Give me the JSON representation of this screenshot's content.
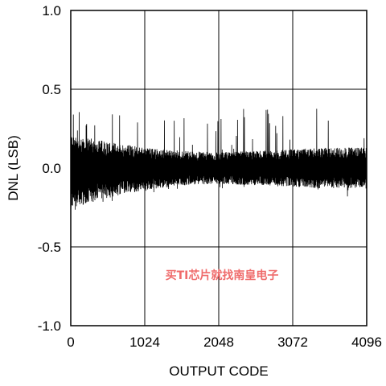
{
  "chart_data": {
    "type": "line",
    "title": "",
    "xlabel": "OUTPUT CODE",
    "ylabel": "DNL (LSB)",
    "xlim": [
      0,
      4096
    ],
    "ylim": [
      -1.0,
      1.0
    ],
    "x_ticks": [
      0,
      1024,
      2048,
      3072,
      4096
    ],
    "x_tick_labels": [
      "0",
      "1024",
      "2048",
      "3072",
      "4096"
    ],
    "y_ticks": [
      1.0,
      0.5,
      0.0,
      -0.5,
      -1.0
    ],
    "y_tick_labels": [
      "1.0",
      "0.5",
      "0.0",
      "-0.5",
      "-1.0"
    ],
    "grid": true,
    "series": [
      {
        "color": "#000000",
        "x_range": [
          0,
          4096
        ],
        "envelope": {
          "x": [
            0,
            128,
            512,
            1024,
            1536,
            2048,
            2560,
            3072,
            3584,
            4096
          ],
          "upper": [
            0.22,
            0.2,
            0.17,
            0.13,
            0.11,
            0.1,
            0.11,
            0.12,
            0.13,
            0.13
          ],
          "lower": [
            -0.26,
            -0.24,
            -0.19,
            -0.14,
            -0.11,
            -0.1,
            -0.11,
            -0.12,
            -0.13,
            -0.13
          ]
        },
        "spikes_peak": 0.38,
        "min_value": -0.31
      }
    ]
  },
  "watermark": "买TI芯片就找南皇电子",
  "colors": {
    "trace": "#000000",
    "grid": "#000000",
    "watermark": "#ef6b6b"
  }
}
